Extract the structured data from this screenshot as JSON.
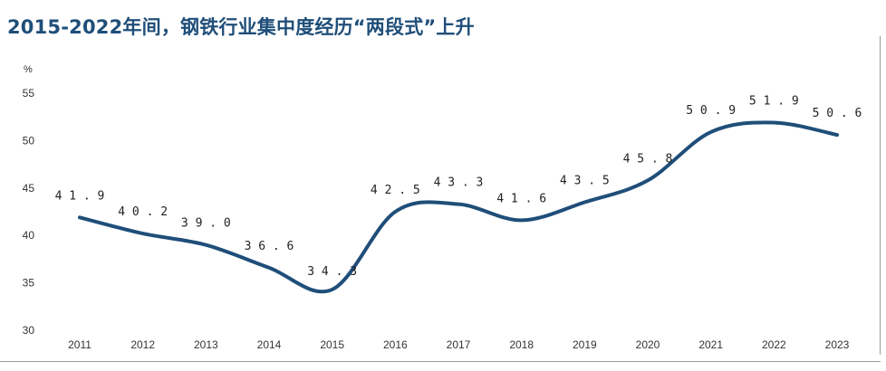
{
  "title": "2015-2022年间，钢铁行业集中度经历“两段式”上升",
  "chart_data": {
    "type": "line",
    "title": "2015-2022年间，钢铁行业集中度经历“两段式”上升",
    "ylabel": "%",
    "xlabel": "",
    "categories": [
      "2011",
      "2012",
      "2013",
      "2014",
      "2015",
      "2016",
      "2017",
      "2018",
      "2019",
      "2020",
      "2021",
      "2022",
      "2023"
    ],
    "series": [
      {
        "values": [
          41.9,
          40.2,
          39.0,
          36.6,
          34.3,
          42.5,
          43.3,
          41.6,
          43.5,
          45.8,
          50.9,
          51.9,
          50.6
        ]
      }
    ],
    "data_labels": [
      "41.9",
      "40.2",
      "39.0",
      "36.6",
      "34.3",
      "42.5",
      "43.3",
      "41.6",
      "43.5",
      "45.8",
      "50.9",
      "51.9",
      "50.6"
    ],
    "ylim": [
      30,
      55
    ],
    "yticks": [
      "30",
      "35",
      "40",
      "45",
      "50",
      "55"
    ],
    "grid": false,
    "smooth": true,
    "line_color": "#1f4e79"
  }
}
